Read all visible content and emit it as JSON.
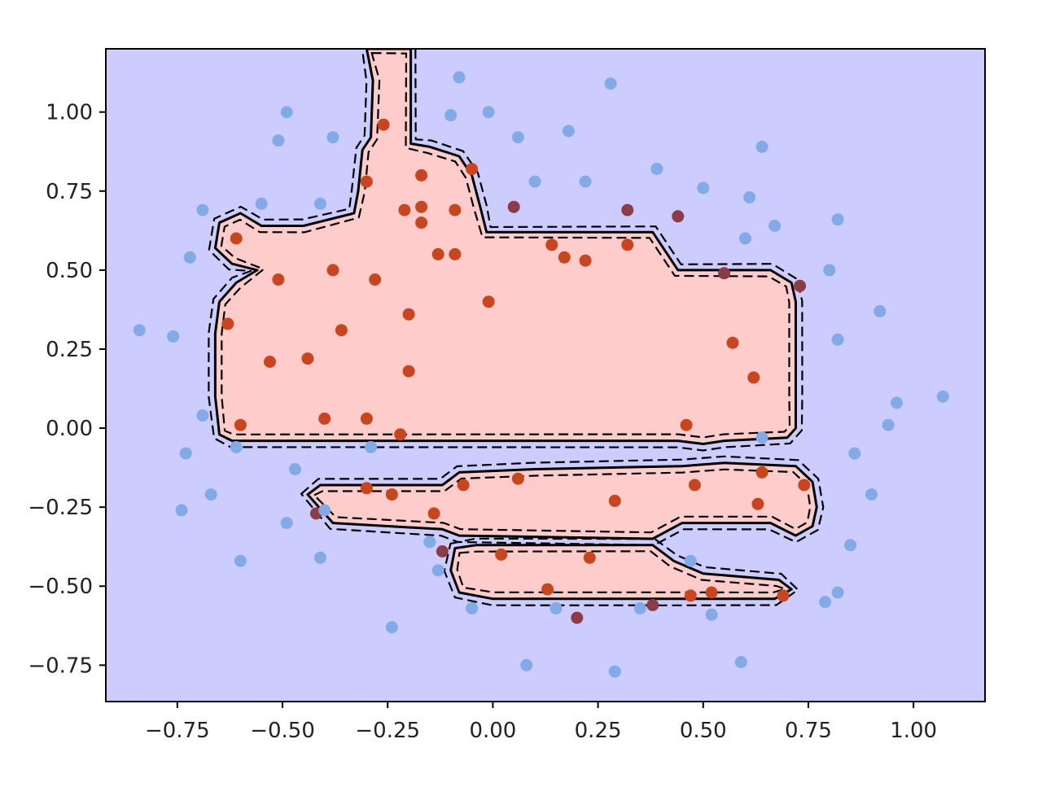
{
  "chart_data": {
    "type": "scatter",
    "title": "",
    "xlabel": "",
    "ylabel": "",
    "xlim": [
      -0.92,
      1.17
    ],
    "ylim": [
      -0.865,
      1.2
    ],
    "grid": false,
    "xticks": [
      {
        "value": -0.75,
        "label": "−0.75"
      },
      {
        "value": -0.5,
        "label": "−0.50"
      },
      {
        "value": -0.25,
        "label": "−0.25"
      },
      {
        "value": 0.0,
        "label": "0.00"
      },
      {
        "value": 0.25,
        "label": "0.25"
      },
      {
        "value": 0.5,
        "label": "0.50"
      },
      {
        "value": 0.75,
        "label": "0.75"
      },
      {
        "value": 1.0,
        "label": "1.00"
      }
    ],
    "yticks": [
      {
        "value": 1.0,
        "label": "1.00"
      },
      {
        "value": 0.75,
        "label": "0.75"
      },
      {
        "value": 0.5,
        "label": "0.50"
      },
      {
        "value": 0.25,
        "label": "0.25"
      },
      {
        "value": 0.0,
        "label": "0.00"
      },
      {
        "value": -0.25,
        "label": "−0.25"
      },
      {
        "value": -0.5,
        "label": "−0.50"
      },
      {
        "value": -0.75,
        "label": "−0.75"
      }
    ],
    "colors": {
      "background_region": "#ccccff",
      "positive_region": "#ffcccc",
      "point_positive": "#c8461e",
      "point_negative": "#82aae6",
      "point_positive_dark": "#8c3c46",
      "boundary": "#000000"
    },
    "regions": [
      {
        "class": "positive",
        "polygon": [
          [
            -0.3,
            1.2
          ],
          [
            -0.195,
            1.2
          ],
          [
            -0.195,
            0.9
          ],
          [
            -0.15,
            0.89
          ],
          [
            -0.08,
            0.86
          ],
          [
            -0.05,
            0.8
          ],
          [
            -0.03,
            0.7
          ],
          [
            -0.015,
            0.62
          ],
          [
            0.38,
            0.62
          ],
          [
            0.44,
            0.5
          ],
          [
            0.66,
            0.5
          ],
          [
            0.71,
            0.46
          ],
          [
            0.72,
            0.4
          ],
          [
            0.72,
            0.1
          ],
          [
            0.72,
            0.0
          ],
          [
            0.7,
            -0.03
          ],
          [
            0.55,
            -0.04
          ],
          [
            0.5,
            -0.05
          ],
          [
            0.44,
            -0.04
          ],
          [
            -0.62,
            -0.04
          ],
          [
            -0.65,
            -0.02
          ],
          [
            -0.66,
            0.1
          ],
          [
            -0.66,
            0.3
          ],
          [
            -0.65,
            0.4
          ],
          [
            -0.61,
            0.46
          ],
          [
            -0.56,
            0.5
          ],
          [
            -0.62,
            0.52
          ],
          [
            -0.66,
            0.57
          ],
          [
            -0.65,
            0.65
          ],
          [
            -0.6,
            0.68
          ],
          [
            -0.55,
            0.64
          ],
          [
            -0.45,
            0.64
          ],
          [
            -0.33,
            0.68
          ],
          [
            -0.32,
            0.75
          ],
          [
            -0.31,
            0.88
          ],
          [
            -0.29,
            0.92
          ],
          [
            -0.285,
            1.1
          ]
        ]
      },
      {
        "class": "positive",
        "polygon": [
          [
            -0.44,
            -0.21
          ],
          [
            -0.41,
            -0.18
          ],
          [
            -0.12,
            -0.18
          ],
          [
            -0.08,
            -0.14
          ],
          [
            0.1,
            -0.13
          ],
          [
            0.45,
            -0.12
          ],
          [
            0.55,
            -0.11
          ],
          [
            0.72,
            -0.12
          ],
          [
            0.76,
            -0.17
          ],
          [
            0.77,
            -0.25
          ],
          [
            0.76,
            -0.31
          ],
          [
            0.72,
            -0.34
          ],
          [
            0.66,
            -0.3
          ],
          [
            0.45,
            -0.3
          ],
          [
            0.38,
            -0.35
          ],
          [
            -0.08,
            -0.34
          ],
          [
            -0.12,
            -0.32
          ],
          [
            -0.38,
            -0.3
          ]
        ]
      },
      {
        "class": "positive",
        "polygon": [
          [
            -0.09,
            -0.38
          ],
          [
            -0.04,
            -0.37
          ],
          [
            0.38,
            -0.37
          ],
          [
            0.43,
            -0.42
          ],
          [
            0.5,
            -0.46
          ],
          [
            0.68,
            -0.48
          ],
          [
            0.71,
            -0.51
          ],
          [
            0.67,
            -0.54
          ],
          [
            0.44,
            -0.54
          ],
          [
            0.0,
            -0.54
          ],
          [
            -0.08,
            -0.52
          ],
          [
            -0.1,
            -0.45
          ]
        ]
      }
    ],
    "series": [
      {
        "class": "positive",
        "points": [
          [
            -0.3,
            0.78
          ],
          [
            -0.17,
            0.8
          ],
          [
            -0.05,
            0.82
          ],
          [
            -0.21,
            0.69
          ],
          [
            -0.17,
            0.7
          ],
          [
            -0.09,
            0.69
          ],
          [
            -0.17,
            0.65
          ],
          [
            -0.61,
            0.6
          ],
          [
            -0.13,
            0.55
          ],
          [
            -0.09,
            0.55
          ],
          [
            -0.38,
            0.5
          ],
          [
            -0.51,
            0.47
          ],
          [
            -0.28,
            0.47
          ],
          [
            0.14,
            0.58
          ],
          [
            0.17,
            0.54
          ],
          [
            0.22,
            0.53
          ],
          [
            0.32,
            0.58
          ],
          [
            -0.2,
            0.36
          ],
          [
            -0.01,
            0.4
          ],
          [
            -0.63,
            0.33
          ],
          [
            -0.36,
            0.31
          ],
          [
            -0.53,
            0.21
          ],
          [
            -0.44,
            0.22
          ],
          [
            -0.2,
            0.18
          ],
          [
            0.57,
            0.27
          ],
          [
            0.62,
            0.16
          ],
          [
            0.46,
            0.01
          ],
          [
            -0.6,
            0.01
          ],
          [
            -0.4,
            0.03
          ],
          [
            -0.3,
            0.03
          ],
          [
            -0.22,
            -0.02
          ],
          [
            -0.26,
            0.96
          ],
          [
            0.06,
            -0.16
          ],
          [
            -0.07,
            -0.18
          ],
          [
            0.48,
            -0.18
          ],
          [
            0.64,
            -0.14
          ],
          [
            0.74,
            -0.18
          ],
          [
            -0.3,
            -0.19
          ],
          [
            -0.24,
            -0.21
          ],
          [
            -0.14,
            -0.27
          ],
          [
            0.29,
            -0.23
          ],
          [
            0.63,
            -0.24
          ],
          [
            0.02,
            -0.4
          ],
          [
            0.23,
            -0.41
          ],
          [
            0.13,
            -0.51
          ],
          [
            0.52,
            -0.52
          ],
          [
            0.47,
            -0.53
          ],
          [
            0.69,
            -0.53
          ]
        ]
      },
      {
        "class": "positive_dark",
        "points": [
          [
            0.05,
            0.7
          ],
          [
            0.32,
            0.69
          ],
          [
            0.44,
            0.67
          ],
          [
            0.73,
            0.45
          ],
          [
            0.55,
            0.49
          ],
          [
            -0.12,
            -0.39
          ],
          [
            0.2,
            -0.6
          ],
          [
            0.38,
            -0.56
          ],
          [
            -0.42,
            -0.27
          ]
        ]
      },
      {
        "class": "negative",
        "points": [
          [
            -0.08,
            1.11
          ],
          [
            0.28,
            1.09
          ],
          [
            -0.49,
            1.0
          ],
          [
            -0.1,
            0.99
          ],
          [
            -0.01,
            1.0
          ],
          [
            -0.51,
            0.91
          ],
          [
            -0.38,
            0.92
          ],
          [
            0.06,
            0.92
          ],
          [
            0.18,
            0.94
          ],
          [
            0.64,
            0.89
          ],
          [
            0.39,
            0.82
          ],
          [
            0.1,
            0.78
          ],
          [
            0.22,
            0.78
          ],
          [
            0.5,
            0.76
          ],
          [
            0.61,
            0.73
          ],
          [
            -0.55,
            0.71
          ],
          [
            -0.41,
            0.71
          ],
          [
            -0.69,
            0.69
          ],
          [
            0.82,
            0.66
          ],
          [
            0.67,
            0.64
          ],
          [
            0.6,
            0.6
          ],
          [
            -0.72,
            0.54
          ],
          [
            0.8,
            0.5
          ],
          [
            0.92,
            0.37
          ],
          [
            -0.84,
            0.31
          ],
          [
            -0.76,
            0.29
          ],
          [
            0.82,
            0.28
          ],
          [
            0.96,
            0.08
          ],
          [
            1.07,
            0.1
          ],
          [
            -0.69,
            0.04
          ],
          [
            0.94,
            0.01
          ],
          [
            0.64,
            -0.03
          ],
          [
            -0.61,
            -0.06
          ],
          [
            -0.29,
            -0.06
          ],
          [
            0.86,
            -0.08
          ],
          [
            -0.73,
            -0.08
          ],
          [
            -0.47,
            -0.13
          ],
          [
            -0.67,
            -0.21
          ],
          [
            0.9,
            -0.21
          ],
          [
            -0.74,
            -0.26
          ],
          [
            -0.4,
            -0.26
          ],
          [
            -0.49,
            -0.3
          ],
          [
            0.85,
            -0.37
          ],
          [
            -0.15,
            -0.36
          ],
          [
            -0.6,
            -0.42
          ],
          [
            -0.41,
            -0.41
          ],
          [
            0.47,
            -0.42
          ],
          [
            -0.13,
            -0.45
          ],
          [
            0.82,
            -0.52
          ],
          [
            0.79,
            -0.55
          ],
          [
            -0.05,
            -0.57
          ],
          [
            0.15,
            -0.57
          ],
          [
            0.35,
            -0.57
          ],
          [
            0.52,
            -0.59
          ],
          [
            -0.24,
            -0.63
          ],
          [
            0.59,
            -0.74
          ],
          [
            0.08,
            -0.75
          ],
          [
            0.29,
            -0.77
          ]
        ]
      }
    ]
  }
}
